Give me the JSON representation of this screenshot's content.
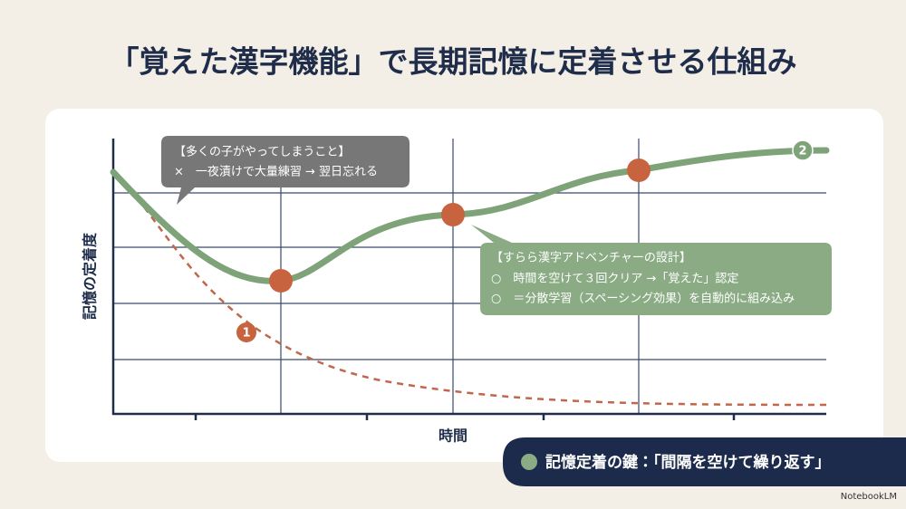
{
  "header": {
    "title": "「覚えた漢字機能」で長期記憶に定着させる仕組み"
  },
  "diagram": {
    "y_axis_label": "記憶の定着度",
    "x_axis_label": "時間",
    "curve_labels": [
      "1",
      "2"
    ],
    "callouts": [
      {
        "title": "【多くの子がやってしまうこと】",
        "lines": [
          "×　一夜漬けで大量練習 → 翌日忘れる"
        ]
      },
      {
        "title": "【すらら漢字アドベンチャーの設計】",
        "lines": [
          "○　時間を空けて３回クリア →「覚えた」認定",
          "○　＝分散学習（スペーシング効果）を自動的に組み込み"
        ]
      }
    ]
  },
  "footer": {
    "key_message": "記憶定着の鍵：「間隔を空けて繰り返す」",
    "brand": "NotebookLM"
  }
}
